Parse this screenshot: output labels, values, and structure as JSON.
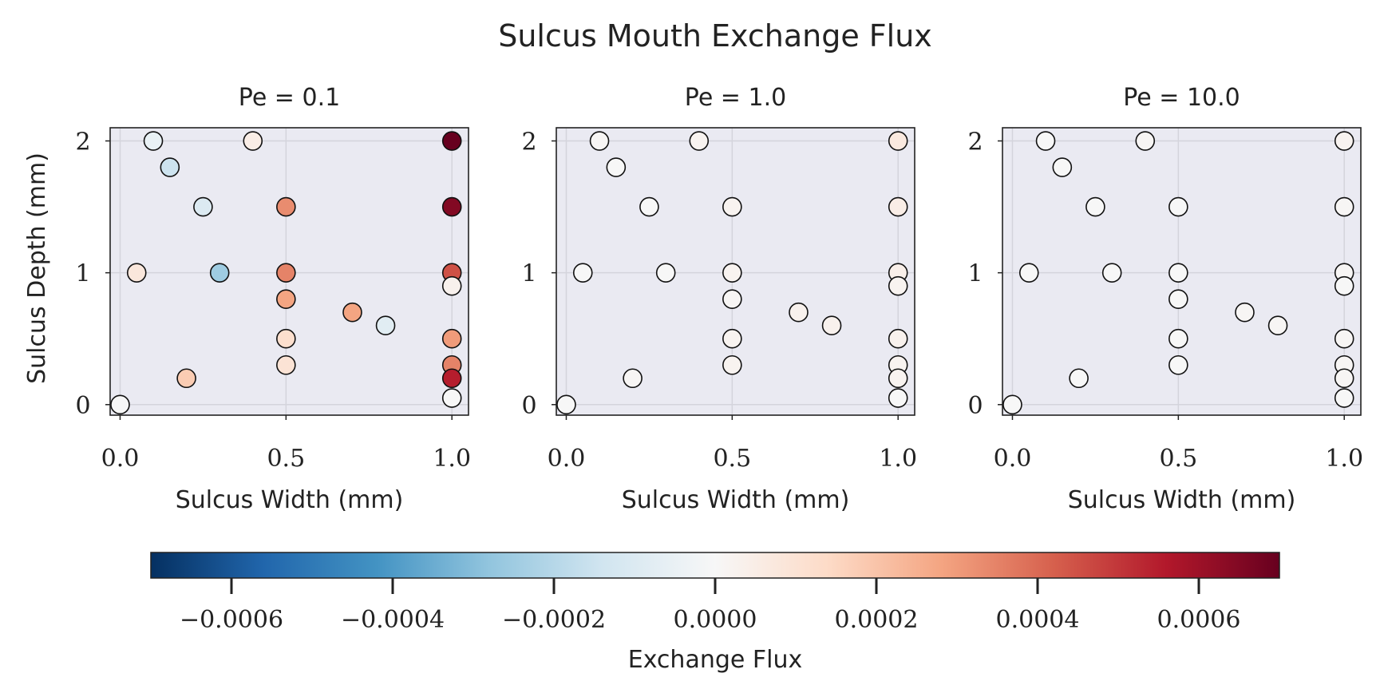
{
  "chart_data": {
    "type": "scatter",
    "title": "Sulcus Mouth Exchange Flux",
    "xlabel": "Sulcus Width (mm)",
    "ylabel": "Sulcus Depth (mm)",
    "xlim": [
      -0.03,
      1.05
    ],
    "ylim": [
      -0.08,
      2.1
    ],
    "x_ticks": [
      0.0,
      0.5,
      1.0
    ],
    "x_tick_labels": [
      "0.0",
      "0.5",
      "1.0"
    ],
    "y_ticks": [
      0,
      1,
      2
    ],
    "y_tick_labels": [
      "0",
      "1",
      "2"
    ],
    "grid": true,
    "colorbar": {
      "label": "Exchange Flux",
      "colormap": "RdBu_r",
      "range": [
        -0.0007,
        0.0007
      ],
      "ticks": [
        -0.0006,
        -0.0004,
        -0.0002,
        0.0,
        0.0002,
        0.0004,
        0.0006
      ],
      "tick_labels": [
        "−0.0006",
        "−0.0004",
        "−0.0002",
        "0.0000",
        "0.0002",
        "0.0004",
        "0.0006"
      ],
      "orientation": "horizontal",
      "placement": "bottom"
    },
    "panels": [
      {
        "title": "Pe = 0.1",
        "points": [
          {
            "x": 0.1,
            "y": 2.0,
            "v": -5e-05
          },
          {
            "x": 0.4,
            "y": 2.0,
            "v": 5e-05
          },
          {
            "x": 1.0,
            "y": 2.0,
            "v": 0.0007
          },
          {
            "x": 0.15,
            "y": 1.8,
            "v": -0.00015
          },
          {
            "x": 0.25,
            "y": 1.5,
            "v": -0.0001
          },
          {
            "x": 0.5,
            "y": 1.5,
            "v": 0.00033
          },
          {
            "x": 1.0,
            "y": 1.5,
            "v": 0.00065
          },
          {
            "x": 0.05,
            "y": 1.0,
            "v": 8e-05
          },
          {
            "x": 0.3,
            "y": 1.0,
            "v": -0.00025
          },
          {
            "x": 0.5,
            "y": 1.0,
            "v": 0.00035
          },
          {
            "x": 1.0,
            "y": 1.0,
            "v": 0.00045
          },
          {
            "x": 1.0,
            "y": 0.9,
            "v": 3e-05
          },
          {
            "x": 0.5,
            "y": 0.8,
            "v": 0.00028
          },
          {
            "x": 0.7,
            "y": 0.7,
            "v": 0.00028
          },
          {
            "x": 0.8,
            "y": 0.6,
            "v": -8e-05
          },
          {
            "x": 0.5,
            "y": 0.5,
            "v": 0.00012
          },
          {
            "x": 1.0,
            "y": 0.5,
            "v": 0.0003
          },
          {
            "x": 0.5,
            "y": 0.3,
            "v": 0.0001
          },
          {
            "x": 1.0,
            "y": 0.3,
            "v": 0.00035
          },
          {
            "x": 0.2,
            "y": 0.2,
            "v": 0.00018
          },
          {
            "x": 1.0,
            "y": 0.2,
            "v": 0.00055
          },
          {
            "x": 0.0,
            "y": 0.0,
            "v": 0.0
          },
          {
            "x": 1.0,
            "y": 0.05,
            "v": 0.0
          }
        ]
      },
      {
        "title": "Pe = 1.0",
        "points": [
          {
            "x": 0.1,
            "y": 2.0,
            "v": 1e-05
          },
          {
            "x": 0.4,
            "y": 2.0,
            "v": 2e-05
          },
          {
            "x": 1.0,
            "y": 2.0,
            "v": 7e-05
          },
          {
            "x": 0.15,
            "y": 1.8,
            "v": 0.0
          },
          {
            "x": 0.25,
            "y": 1.5,
            "v": 0.0
          },
          {
            "x": 0.5,
            "y": 1.5,
            "v": 2e-05
          },
          {
            "x": 1.0,
            "y": 1.5,
            "v": 5e-05
          },
          {
            "x": 0.05,
            "y": 1.0,
            "v": 0.0
          },
          {
            "x": 0.3,
            "y": 1.0,
            "v": 0.0
          },
          {
            "x": 0.5,
            "y": 1.0,
            "v": 2e-05
          },
          {
            "x": 1.0,
            "y": 1.0,
            "v": 4e-05
          },
          {
            "x": 1.0,
            "y": 0.9,
            "v": 2e-05
          },
          {
            "x": 0.5,
            "y": 0.8,
            "v": 1e-05
          },
          {
            "x": 0.7,
            "y": 0.7,
            "v": 3e-05
          },
          {
            "x": 0.8,
            "y": 0.6,
            "v": 3e-05
          },
          {
            "x": 0.5,
            "y": 0.5,
            "v": 2e-05
          },
          {
            "x": 1.0,
            "y": 0.5,
            "v": 3e-05
          },
          {
            "x": 0.5,
            "y": 0.3,
            "v": 2e-05
          },
          {
            "x": 1.0,
            "y": 0.3,
            "v": 2e-05
          },
          {
            "x": 0.2,
            "y": 0.2,
            "v": 1e-05
          },
          {
            "x": 1.0,
            "y": 0.2,
            "v": 2e-05
          },
          {
            "x": 0.0,
            "y": 0.0,
            "v": 0.0
          },
          {
            "x": 1.0,
            "y": 0.05,
            "v": 0.0
          }
        ]
      },
      {
        "title": "Pe = 10.0",
        "points": [
          {
            "x": 0.1,
            "y": 2.0,
            "v": 0.0
          },
          {
            "x": 0.4,
            "y": 2.0,
            "v": 1e-05
          },
          {
            "x": 1.0,
            "y": 2.0,
            "v": 2e-05
          },
          {
            "x": 0.15,
            "y": 1.8,
            "v": 0.0
          },
          {
            "x": 0.25,
            "y": 1.5,
            "v": 0.0
          },
          {
            "x": 0.5,
            "y": 1.5,
            "v": 0.0
          },
          {
            "x": 1.0,
            "y": 1.5,
            "v": 1e-05
          },
          {
            "x": 0.05,
            "y": 1.0,
            "v": 0.0
          },
          {
            "x": 0.3,
            "y": 1.0,
            "v": 0.0
          },
          {
            "x": 0.5,
            "y": 1.0,
            "v": 0.0
          },
          {
            "x": 1.0,
            "y": 1.0,
            "v": 1e-05
          },
          {
            "x": 1.0,
            "y": 0.9,
            "v": 0.0
          },
          {
            "x": 0.5,
            "y": 0.8,
            "v": 0.0
          },
          {
            "x": 0.7,
            "y": 0.7,
            "v": 1e-05
          },
          {
            "x": 0.8,
            "y": 0.6,
            "v": 1e-05
          },
          {
            "x": 0.5,
            "y": 0.5,
            "v": 0.0
          },
          {
            "x": 1.0,
            "y": 0.5,
            "v": 1e-05
          },
          {
            "x": 0.5,
            "y": 0.3,
            "v": 0.0
          },
          {
            "x": 1.0,
            "y": 0.3,
            "v": 1e-05
          },
          {
            "x": 0.2,
            "y": 0.2,
            "v": 0.0
          },
          {
            "x": 1.0,
            "y": 0.2,
            "v": 1e-05
          },
          {
            "x": 0.0,
            "y": 0.0,
            "v": 0.0
          },
          {
            "x": 1.0,
            "y": 0.05,
            "v": 0.0
          }
        ]
      }
    ]
  }
}
